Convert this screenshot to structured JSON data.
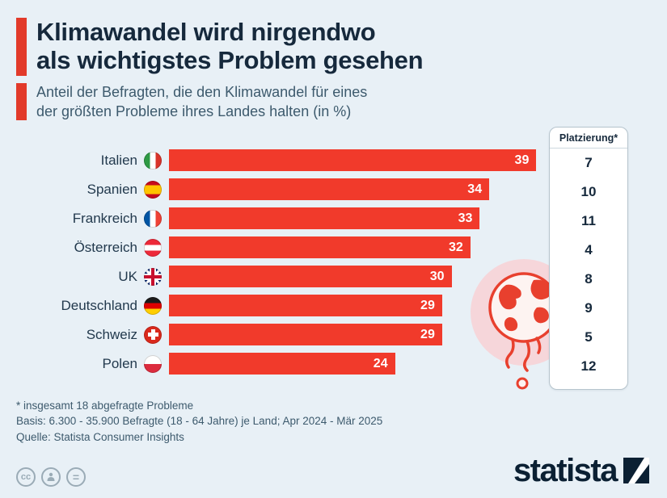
{
  "header": {
    "title_line1": "Klimawandel wird nirgendwo",
    "title_line2": "als wichtigstes Problem gesehen",
    "subtitle_line1": "Anteil der Befragten, die den Klimawandel für eines",
    "subtitle_line2": "der größten Probleme ihres Landes halten (in %)"
  },
  "chart_data": {
    "type": "bar",
    "orientation": "horizontal",
    "title": "Klimawandel wird nirgendwo als wichtigstes Problem gesehen",
    "subtitle": "Anteil der Befragten, die den Klimawandel für eines der größten Probleme ihres Landes halten (in %)",
    "categories": [
      "Italien",
      "Spanien",
      "Frankreich",
      "Österreich",
      "UK",
      "Deutschland",
      "Schweiz",
      "Polen"
    ],
    "values": [
      39,
      34,
      33,
      32,
      30,
      29,
      29,
      24
    ],
    "ranking_label": "Platzierung*",
    "ranking": [
      7,
      10,
      11,
      4,
      8,
      9,
      5,
      12
    ],
    "flags": [
      "italy-flag",
      "spain-flag",
      "france-flag",
      "austria-flag",
      "uk-flag",
      "germany-flag",
      "switzerland-flag",
      "poland-flag"
    ],
    "xlim": [
      0,
      40
    ],
    "grid": false,
    "legend": false,
    "bar_color": "#f13a2b"
  },
  "colors": {
    "background": "#e8f0f6",
    "accent_red": "#e23a2a",
    "bar_red": "#f13a2b",
    "title_text": "#16293c",
    "subtitle_text": "#3d5a6d"
  },
  "footnotes": [
    "* insgesamt 18 abgefragte Probleme",
    "Basis: 6.300 - 35.900 Befragte (18 - 64 Jahre) je Land; Apr 2024 - Mär 2025",
    "Quelle: Statista Consumer Insights"
  ],
  "footer": {
    "brand": "statista",
    "cc_label": "cc",
    "equals_label": "="
  }
}
